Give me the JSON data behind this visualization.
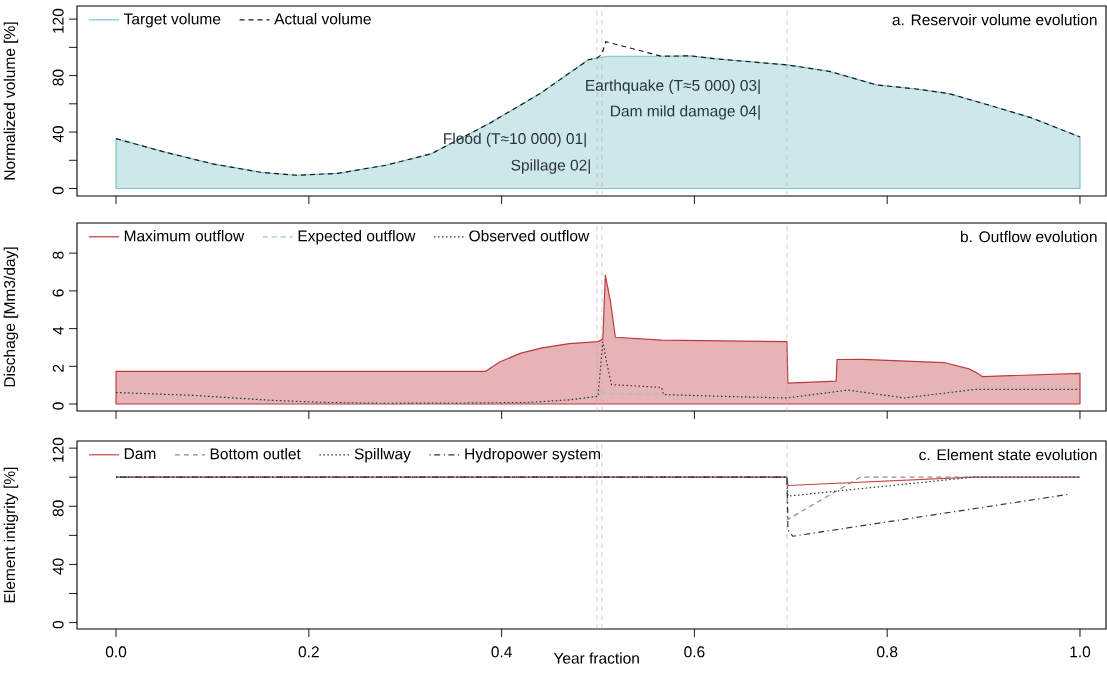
{
  "chart_data": [
    {
      "type": "line",
      "title": "a. Reservoir volume evolution",
      "ylabel": "Normalized volume [%]",
      "xlim": [
        -0.0405,
        1.027
      ],
      "ylim": [
        -5.3,
        129.3
      ],
      "xticks": [
        0,
        0.2,
        0.4,
        0.6,
        0.8,
        1
      ],
      "yticks": [
        0,
        {
          "value": 20,
          "label": null
        },
        40,
        {
          "value": 60,
          "label": null
        },
        80,
        {
          "value": 100,
          "label": null
        },
        120
      ],
      "tick_labels": "y",
      "legend": "top left",
      "series": [
        {
          "name": "Target volume",
          "type": "area",
          "color": "#7fbfca",
          "line_style": "solid",
          "x": [
            0,
            0.05,
            0.1,
            0.15,
            0.187,
            0.23,
            0.28,
            0.327,
            0.387,
            0.44,
            0.49,
            0.51,
            0.566,
            0.596,
            0.62,
            0.696,
            0.74,
            0.789,
            0.83,
            0.863,
            0.9,
            0.95,
            1.0
          ],
          "values": [
            35.3,
            25.9,
            17.5,
            11.5,
            9.4,
            10.7,
            16.5,
            24.6,
            46,
            67.3,
            91.2,
            93.7,
            93.7,
            94,
            92,
            87.6,
            83,
            73.4,
            70.5,
            67.4,
            60.2,
            50,
            36.5
          ]
        },
        {
          "name": "Actual volume",
          "type": "line",
          "color": "#1a1a1a",
          "line_style": "dashed",
          "x": [
            0,
            0.05,
            0.1,
            0.15,
            0.187,
            0.23,
            0.28,
            0.327,
            0.387,
            0.44,
            0.49,
            0.499,
            0.504,
            0.508,
            0.566,
            0.596,
            0.62,
            0.696,
            0.74,
            0.789,
            0.83,
            0.863,
            0.9,
            0.95,
            1.0
          ],
          "values": [
            35.3,
            25.9,
            17.5,
            11.5,
            9.4,
            10.7,
            16.5,
            24.6,
            46,
            67.3,
            91.2,
            92.5,
            95,
            104,
            93.7,
            94,
            92,
            87.6,
            83,
            73.4,
            70.5,
            67.4,
            60.2,
            50,
            36.5
          ]
        }
      ],
      "ref_lines": [
        {
          "axis": "x",
          "value": 0.499,
          "color": "#b0b0b0",
          "line_style": "dashed"
        },
        {
          "axis": "x",
          "value": 0.504,
          "color": "#b0b0b0",
          "line_style": "dashed"
        },
        {
          "axis": "x",
          "value": 0.696,
          "color": "#b0b0b0",
          "line_style": "dashed"
        }
      ],
      "annotations": [
        "Flood (T≈10 000) 01|",
        "Spillage 02|",
        "Earthquake (T≈5 000) 03|",
        "Dam mild damage 04|"
      ]
    },
    {
      "type": "line",
      "title": "b. Outflow evolution",
      "ylabel": "Dischage [Mm3/day]",
      "xlim": [
        -0.0405,
        1.027
      ],
      "ylim": [
        -0.37,
        9.6
      ],
      "xticks": [
        0,
        0.2,
        0.4,
        0.6,
        0.8,
        1
      ],
      "yticks": [
        0,
        2,
        4,
        6,
        8
      ],
      "tick_labels": "y",
      "legend": "top left",
      "series": [
        {
          "name": "Maximum outflow",
          "type": "area",
          "color": "#c0393f",
          "line_style": "solid",
          "x": [
            0,
            0.383,
            0.398,
            0.42,
            0.442,
            0.47,
            0.5,
            0.505,
            0.5076,
            0.513,
            0.518,
            0.566,
            0.696,
            0.697,
            0.747,
            0.748,
            0.774,
            0.859,
            0.885,
            0.892,
            0.899,
            1.0
          ],
          "values": [
            1.73,
            1.73,
            2.23,
            2.7,
            2.98,
            3.2,
            3.31,
            3.44,
            6.84,
            5.4,
            3.54,
            3.39,
            3.31,
            1.11,
            1.21,
            2.36,
            2.37,
            2.2,
            1.86,
            1.68,
            1.45,
            1.63
          ]
        },
        {
          "name": "Expected outflow",
          "type": "line",
          "color": "#9ac6cc",
          "line_style": "dashed",
          "x": [
            0,
            0.08,
            0.164,
            0.22,
            0.275,
            0.35,
            0.424,
            0.47,
            0.5,
            0.505,
            0.566,
            0.568,
            0.626,
            0.696,
            0.759,
            0.818,
            0.892,
            1.0
          ],
          "values": [
            0.61,
            0.46,
            0.19,
            0.08,
            0.04,
            0.05,
            0.08,
            0.22,
            0.41,
            0.56,
            0.5,
            0.5,
            0.41,
            0.32,
            0.74,
            0.32,
            0.78,
            0.78
          ]
        },
        {
          "name": "Observed outflow",
          "type": "line",
          "color": "#4a2a2a",
          "line_style": "dotted",
          "x": [
            0,
            0.08,
            0.164,
            0.22,
            0.275,
            0.35,
            0.424,
            0.47,
            0.5,
            0.505,
            0.509,
            0.514,
            0.566,
            0.568,
            0.626,
            0.696,
            0.759,
            0.818,
            0.892,
            1.0
          ],
          "values": [
            0.61,
            0.46,
            0.19,
            0.08,
            0.04,
            0.05,
            0.08,
            0.22,
            0.41,
            3.3,
            2.2,
            1.03,
            0.88,
            0.5,
            0.41,
            0.32,
            0.74,
            0.32,
            0.78,
            0.78
          ]
        }
      ],
      "ref_lines": [
        {
          "axis": "x",
          "value": 0.499,
          "color": "#b0b0b0",
          "line_style": "dashed"
        },
        {
          "axis": "x",
          "value": 0.504,
          "color": "#b0b0b0",
          "line_style": "dashed"
        },
        {
          "axis": "x",
          "value": 0.696,
          "color": "#b0b0b0",
          "line_style": "dashed"
        }
      ]
    },
    {
      "type": "line",
      "title": "c. Element state evolution",
      "xlabel": "Year fraction",
      "ylabel": "Element intigrity [%]",
      "xlim": [
        -0.0405,
        1.027
      ],
      "ylim": [
        -4.4,
        124.9
      ],
      "xticks": [
        {
          "value": 0,
          "label": "0.0"
        },
        0.2,
        0.4,
        0.6,
        0.8,
        {
          "value": 1,
          "label": "1.0"
        }
      ],
      "yticks": [
        0,
        {
          "value": 20,
          "label": null
        },
        40,
        {
          "value": 60,
          "label": null
        },
        80,
        {
          "value": 100,
          "label": null
        },
        120
      ],
      "legend": "top left",
      "series": [
        {
          "name": "Dam",
          "type": "line",
          "color": "#c8434c",
          "line_style": "solid",
          "x": [
            0,
            0.696,
            0.697,
            0.889,
            1.0
          ],
          "values": [
            100,
            100,
            94.3,
            100,
            100
          ]
        },
        {
          "name": "Bottom outlet",
          "type": "line",
          "color": "#8c8c8c",
          "line_style": "dashed",
          "x": [
            0,
            0.696,
            0.697,
            0.772,
            1.0
          ],
          "values": [
            100,
            100,
            71,
            100,
            100
          ]
        },
        {
          "name": "Spillway",
          "type": "line",
          "color": "#333333",
          "line_style": "dotted",
          "x": [
            0,
            0.696,
            0.697,
            0.889,
            1.0
          ],
          "values": [
            100,
            100,
            87,
            100,
            100
          ]
        },
        {
          "name": "Hydropower system",
          "type": "line",
          "color": "#333333",
          "line_style": "dashdot",
          "x": [
            0,
            0.696,
            0.697,
            0.702,
            0.987
          ],
          "values": [
            100,
            100,
            64,
            59.4,
            88.1
          ]
        }
      ],
      "ref_lines": [
        {
          "axis": "x",
          "value": 0.499,
          "color": "#b0b0b0",
          "line_style": "dashed"
        },
        {
          "axis": "x",
          "value": 0.504,
          "color": "#b0b0b0",
          "line_style": "dashed"
        },
        {
          "axis": "x",
          "value": 0.696,
          "color": "#b0b0b0",
          "line_style": "dashed"
        }
      ]
    }
  ]
}
